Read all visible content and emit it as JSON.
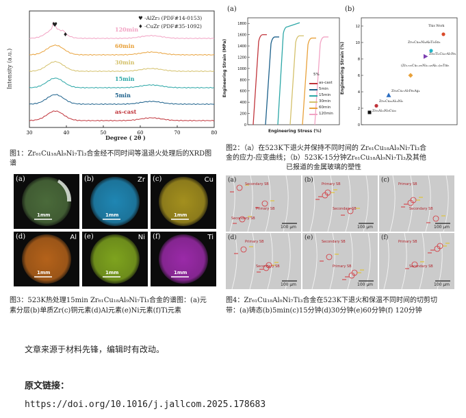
{
  "fig1": {
    "legend": [
      "♥ -AlZr₃ (PDF#14-0153)",
      "♦ -CuZr (PDF#35-1092)"
    ],
    "ylabel": "Intensity (a.u.)",
    "xlabel": "Degree ( 2θ )",
    "xticks": [
      "30",
      "40",
      "50",
      "60",
      "70",
      "80"
    ],
    "curves": [
      {
        "label": "120min",
        "color": "#f2a3c4"
      },
      {
        "label": "60min",
        "color": "#e8a13a"
      },
      {
        "label": "30min",
        "color": "#d4c06a"
      },
      {
        "label": "15min",
        "color": "#2aa6a6"
      },
      {
        "label": "5min",
        "color": "#1a5f8a"
      },
      {
        "label": "as-cast",
        "color": "#c0333a"
      }
    ],
    "caption": "图1：Zr₆₁Cu₁₈Al₉Ni₇Ti₃合金经不同时间等温退火处理后的XRD图谱"
  },
  "fig2": {
    "panel_a": "(a)",
    "panel_b": "(b)",
    "a_ylabel": "Engineering Strain (MPa)",
    "a_xlabel": "Engineering Stress (%)",
    "a_yticks": [
      "1800",
      "1600",
      "1400",
      "1200",
      "1000",
      "800",
      "600",
      "400",
      "200",
      "0"
    ],
    "a_xunit": "5%",
    "a_legend": [
      {
        "label": "as-cast",
        "color": "#c0333a"
      },
      {
        "label": "5min",
        "color": "#1a5f8a"
      },
      {
        "label": "15min",
        "color": "#2aa6a6"
      },
      {
        "label": "30min",
        "color": "#d4c06a"
      },
      {
        "label": "60min",
        "color": "#e8a13a"
      },
      {
        "label": "120min",
        "color": "#f2a3c4"
      }
    ],
    "b_ylabel": "Engineering Strain (%)",
    "b_yticks": [
      "12",
      "10",
      "8",
      "6",
      "4",
      "2",
      "0"
    ],
    "b_points": [
      {
        "label": "This Work",
        "color": "#d94a2a",
        "shape": "circle",
        "strain": 11.0
      },
      {
        "label": "Zr₅₃Cu₃₀Ni₉Al₈Ti₅Sn₃",
        "color": "#23b5c8",
        "shape": "circle",
        "strain": 9.0
      },
      {
        "label": "Zr₆₅Ti₁Cu₂₇Al₇Fe₁",
        "color": "#7b3fb0",
        "shape": "triangle-right",
        "strain": 8.3
      },
      {
        "label": "(Zr₀.₅₂₅Cu₀.₂₆₅Ni₀.₁₄₅Al₀.₁)₉₅Tm₅",
        "color": "#e8a13a",
        "shape": "diamond",
        "strain": 6.0
      },
      {
        "label": "Zr₅₆Cu₂₇Al₇Fe₃Ag₄",
        "color": "#2a6dc0",
        "shape": "triangle",
        "strain": 3.6
      },
      {
        "label": "Zr₅₅Cu₃₀Al₁₀Ni₅",
        "color": "#c0333a",
        "shape": "circle",
        "strain": 2.3
      },
      {
        "label": "Zr₅₅Al₁₀Ni₅Cu₃₀",
        "color": "#111111",
        "shape": "square",
        "strain": 1.5
      }
    ],
    "caption_line1": "图2：（a）在523K下退火并保持不同时间的 Zr₆₁Cu₁₈Al₉Ni₇Ti₃合",
    "caption_line2": "金的应力-应变曲线；（b）523K-15分钟Zr₆₁Cu₁₈Al₉Ni₇Ti₃及其他",
    "caption_line3": "已报道的金属玻璃的塑性"
  },
  "fig3": {
    "panels": [
      {
        "tag": "(a)",
        "element": "",
        "color": "#4a6a3a",
        "scale": "1mm"
      },
      {
        "tag": "(b)",
        "element": "Zr",
        "color": "#1f86b3",
        "scale": "1mm"
      },
      {
        "tag": "(c)",
        "element": "Cu",
        "color": "#a38f1e",
        "scale": "1mm"
      },
      {
        "tag": "(d)",
        "element": "Al",
        "color": "#b4621a",
        "scale": "1mm"
      },
      {
        "tag": "(e)",
        "element": "Ni",
        "color": "#7ea31e",
        "scale": "1mm"
      },
      {
        "tag": "(f)",
        "element": "Ti",
        "color": "#9a2aa8",
        "scale": "1mm"
      }
    ],
    "caption_line1": "图3：523K热处理15min Zr₆₁Cu₁₈Al₉Ni₇Ti₃合金的谱图：(a)元",
    "caption_line2": "素分层(b)单质Zr(c)铜元素(d)Al元素(e)Ni元素(f)Ti元素"
  },
  "fig4": {
    "panels": [
      {
        "tag": "(a)",
        "labels": [
          "Secondary SB",
          "Primary SB",
          "Secondary SB"
        ],
        "scale": "100 μm"
      },
      {
        "tag": "(b)",
        "labels": [
          "Primary SB",
          "Secondary SB"
        ],
        "scale": "100 μm"
      },
      {
        "tag": "(c)",
        "labels": [
          "Primary SB",
          "Secondary SB"
        ],
        "scale": "100 μm"
      },
      {
        "tag": "(d)",
        "labels": [
          "Primary SB",
          "Secondary SB"
        ],
        "scale": "100 μm"
      },
      {
        "tag": "(e)",
        "labels": [
          "Secondary SB",
          "Primary SB"
        ],
        "scale": "100 μm"
      },
      {
        "tag": "(f)",
        "labels": [
          "Primary SB",
          "Secondary SB"
        ],
        "scale": "100 μm"
      }
    ],
    "caption_line1": "图4：Zr₆₁Cu₁₈Al₉Ni₇Ti₃合金在523K下退火和保温不同时间的切剪切",
    "caption_line2": "带：(a)铸态(b)5min(c)15分钟(d)30分钟(e)60分钟(f) 120分钟"
  },
  "footer": {
    "source_note": "文章来源于材料先锋，编辑时有改动。",
    "link_heading": "原文链接：",
    "link": "https://doi.org/10.1016/j.jallcom.2025.178683"
  }
}
